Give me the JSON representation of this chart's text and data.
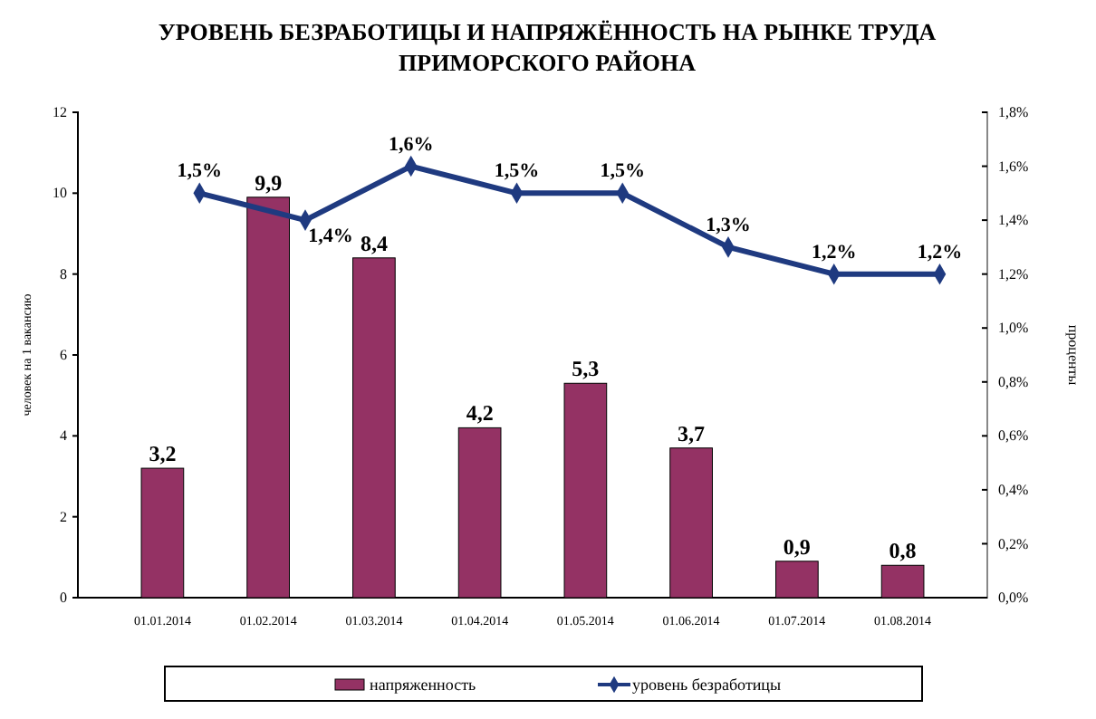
{
  "chart_data": {
    "type": "bar",
    "title": "УРОВЕНЬ БЕЗРАБОТИЦЫ И НАПРЯЖЁННОСТЬ НА РЫНКЕ ТРУДА ПРИМОРСКОГО РАЙОНА",
    "ylabel": "человек на 1 вакансию",
    "y2label": "проценты",
    "categories": [
      "01.01.2014",
      "01.02.2014",
      "01.03.2014",
      "01.04.2014",
      "01.05.2014",
      "01.06.2014",
      "01.07.2014",
      "01.08.2014"
    ],
    "series": [
      {
        "name": "напряженность",
        "color": "#943264",
        "values": [
          3.2,
          9.9,
          8.4,
          4.2,
          5.3,
          3.7,
          0.9,
          0.8
        ],
        "value_labels": [
          "3,2",
          "9,9",
          "8,4",
          "4,2",
          "5,3",
          "3,7",
          "0,9",
          "0,8"
        ]
      },
      {
        "name": "уровень безработицы",
        "type": "line",
        "axis": "y2",
        "color": "#1f3a80",
        "marker": "diamond",
        "values": [
          1.5,
          1.4,
          1.6,
          1.5,
          1.5,
          1.3,
          1.2,
          1.2
        ],
        "value_labels": [
          "1,5%",
          "1,4%",
          "1,6%",
          "1,5%",
          "1,5%",
          "1,3%",
          "1,2%",
          "1,2%"
        ]
      }
    ],
    "ylim": [
      0,
      12
    ],
    "yticks": [
      0,
      2,
      4,
      6,
      8,
      10,
      12
    ],
    "y2lim": [
      0,
      1.8
    ],
    "y2ticks": [
      {
        "value": 0,
        "label": "0,0%"
      },
      {
        "value": 0.2,
        "label": "0,2%"
      },
      {
        "value": 0.4,
        "label": "0,4%"
      },
      {
        "value": 0.6,
        "label": "0,6%"
      },
      {
        "value": 0.8,
        "label": "0,8%"
      },
      {
        "value": 1.0,
        "label": "1,0%"
      },
      {
        "value": 1.2,
        "label": "1,2%"
      },
      {
        "value": 1.4,
        "label": "1,4%"
      },
      {
        "value": 1.6,
        "label": "1,6%"
      },
      {
        "value": 1.8,
        "label": "1,8%"
      }
    ],
    "legend": "bottom",
    "grid": false
  }
}
